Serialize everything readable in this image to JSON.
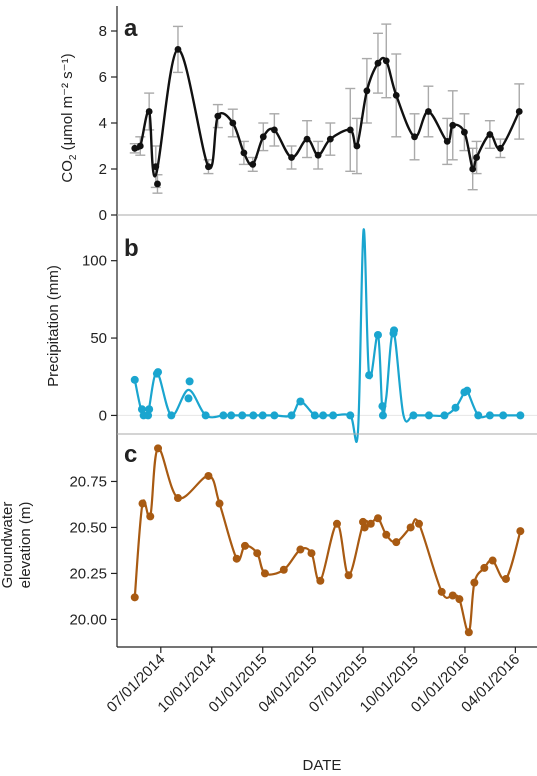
{
  "chart_data": [
    {
      "type": "scatter",
      "panel_label": "a",
      "ylabel_main": "CO",
      "ylabel_sub": "2",
      "ylabel_rest": " (μmol m⁻² s⁻¹)",
      "ylim": [
        0,
        9
      ],
      "yticks": [
        0,
        2,
        4,
        6,
        8
      ],
      "color": "#111111",
      "error_bar_color": "#aaaaaa",
      "points": [
        {
          "x": "2014-05-15",
          "y": 2.9,
          "err": 0.2
        },
        {
          "x": "2014-05-25",
          "y": 3.0,
          "err": 0.4
        },
        {
          "x": "2014-06-10",
          "y": 4.5,
          "err": 0.8
        },
        {
          "x": "2014-06-22",
          "y": 2.1,
          "err": 0.9
        },
        {
          "x": "2014-06-25",
          "y": 1.35,
          "err": 0.4
        },
        {
          "x": "2014-08-01",
          "y": 7.2,
          "err": 1.0
        },
        {
          "x": "2014-09-25",
          "y": 2.1,
          "err": 0.3
        },
        {
          "x": "2014-10-12",
          "y": 4.3,
          "err": 0.5
        },
        {
          "x": "2014-11-08",
          "y": 4.0,
          "err": 0.6
        },
        {
          "x": "2014-11-28",
          "y": 2.7,
          "err": 0.5
        },
        {
          "x": "2014-12-14",
          "y": 2.2,
          "err": 0.3
        },
        {
          "x": "2015-01-02",
          "y": 3.4,
          "err": 0.6
        },
        {
          "x": "2015-01-22",
          "y": 3.7,
          "err": 0.7
        },
        {
          "x": "2015-02-22",
          "y": 2.5,
          "err": 0.5
        },
        {
          "x": "2015-03-22",
          "y": 3.3,
          "err": 0.8
        },
        {
          "x": "2015-04-11",
          "y": 2.6,
          "err": 0.6
        },
        {
          "x": "2015-05-03",
          "y": 3.3,
          "err": 0.7
        },
        {
          "x": "2015-06-08",
          "y": 3.7,
          "err": 1.8
        },
        {
          "x": "2015-06-20",
          "y": 3.0,
          "err": 1.2
        },
        {
          "x": "2015-07-08",
          "y": 5.4,
          "err": 1.4
        },
        {
          "x": "2015-07-28",
          "y": 6.6,
          "err": 1.3
        },
        {
          "x": "2015-08-12",
          "y": 6.7,
          "err": 1.6
        },
        {
          "x": "2015-08-30",
          "y": 5.2,
          "err": 1.8
        },
        {
          "x": "2015-10-02",
          "y": 3.4,
          "err": 1.0
        },
        {
          "x": "2015-10-27",
          "y": 4.5,
          "err": 1.1
        },
        {
          "x": "2015-11-30",
          "y": 3.2,
          "err": 1.0
        },
        {
          "x": "2015-12-10",
          "y": 3.9,
          "err": 1.5
        },
        {
          "x": "2015-12-31",
          "y": 3.6,
          "err": 0.8
        },
        {
          "x": "2016-01-15",
          "y": 2.0,
          "err": 0.9
        },
        {
          "x": "2016-01-22",
          "y": 2.5,
          "err": 0.7
        },
        {
          "x": "2016-02-15",
          "y": 3.5,
          "err": 0.6
        },
        {
          "x": "2016-03-05",
          "y": 2.9,
          "err": 0.4
        },
        {
          "x": "2016-04-08",
          "y": 4.5,
          "err": 1.2
        }
      ]
    },
    {
      "type": "scatter",
      "panel_label": "b",
      "ylabel_main": "Precipitation (mm)",
      "ylim": [
        -12,
        125
      ],
      "yticks": [
        0,
        50,
        100
      ],
      "color": "#1aa5cf",
      "points": [
        {
          "x": "2014-05-15",
          "y": 23
        },
        {
          "x": "2014-05-28",
          "y": 4
        },
        {
          "x": "2014-05-31",
          "y": 0
        },
        {
          "x": "2014-06-08",
          "y": 0
        },
        {
          "x": "2014-06-10",
          "y": 4
        },
        {
          "x": "2014-06-24",
          "y": 27
        },
        {
          "x": "2014-06-26",
          "y": 28
        },
        {
          "x": "2014-07-20",
          "y": 0
        },
        {
          "x": "2014-08-20",
          "y": 11
        },
        {
          "x": "2014-08-22",
          "y": 22
        },
        {
          "x": "2014-09-20",
          "y": 0
        },
        {
          "x": "2014-10-22",
          "y": 0
        },
        {
          "x": "2014-11-05",
          "y": 0
        },
        {
          "x": "2014-11-25",
          "y": 0
        },
        {
          "x": "2014-12-15",
          "y": 0
        },
        {
          "x": "2015-01-01",
          "y": 0
        },
        {
          "x": "2015-01-22",
          "y": 0
        },
        {
          "x": "2015-02-22",
          "y": 0
        },
        {
          "x": "2015-03-10",
          "y": 9
        },
        {
          "x": "2015-04-05",
          "y": 0
        },
        {
          "x": "2015-04-20",
          "y": 0
        },
        {
          "x": "2015-05-08",
          "y": 0
        },
        {
          "x": "2015-06-08",
          "y": 0
        },
        {
          "x": "2015-07-12",
          "y": 26
        },
        {
          "x": "2015-07-28",
          "y": 52
        },
        {
          "x": "2015-08-05",
          "y": 6
        },
        {
          "x": "2015-08-06",
          "y": 0
        },
        {
          "x": "2015-08-25",
          "y": 53
        },
        {
          "x": "2015-08-26",
          "y": 55
        },
        {
          "x": "2015-09-30",
          "y": 0
        },
        {
          "x": "2015-10-28",
          "y": 0
        },
        {
          "x": "2015-11-25",
          "y": 0
        },
        {
          "x": "2015-12-15",
          "y": 5
        },
        {
          "x": "2015-12-31",
          "y": 15
        },
        {
          "x": "2016-01-05",
          "y": 16
        },
        {
          "x": "2016-01-25",
          "y": 0
        },
        {
          "x": "2016-02-15",
          "y": 0
        },
        {
          "x": "2016-03-10",
          "y": 0
        },
        {
          "x": "2016-04-10",
          "y": 0
        }
      ],
      "curve_only": [
        {
          "x": "2015-06-22",
          "y": -10
        },
        {
          "x": "2015-07-02",
          "y": 120
        },
        {
          "x": "2015-08-12",
          "y": 12
        },
        {
          "x": "2015-09-12",
          "y": 0
        }
      ]
    },
    {
      "type": "scatter",
      "panel_label": "c",
      "ylabel_line1": "Groundwater",
      "ylabel_line2": "elevation (m)",
      "ylim": [
        19.85,
        20.97
      ],
      "yticks": [
        20.0,
        20.25,
        20.5,
        20.75
      ],
      "ytick_labels": [
        "20.00",
        "20.25",
        "20.50",
        "20.75"
      ],
      "color": "#a85a12",
      "points": [
        {
          "x": "2014-05-15",
          "y": 20.12
        },
        {
          "x": "2014-05-29",
          "y": 20.63
        },
        {
          "x": "2014-06-12",
          "y": 20.56
        },
        {
          "x": "2014-06-26",
          "y": 20.93
        },
        {
          "x": "2014-08-01",
          "y": 20.66
        },
        {
          "x": "2014-09-25",
          "y": 20.78
        },
        {
          "x": "2014-10-15",
          "y": 20.63
        },
        {
          "x": "2014-11-15",
          "y": 20.33
        },
        {
          "x": "2014-11-30",
          "y": 20.4
        },
        {
          "x": "2014-12-22",
          "y": 20.36
        },
        {
          "x": "2015-01-05",
          "y": 20.25
        },
        {
          "x": "2015-02-08",
          "y": 20.27
        },
        {
          "x": "2015-03-10",
          "y": 20.38
        },
        {
          "x": "2015-03-30",
          "y": 20.36
        },
        {
          "x": "2015-04-15",
          "y": 20.21
        },
        {
          "x": "2015-05-15",
          "y": 20.52
        },
        {
          "x": "2015-06-05",
          "y": 20.24
        },
        {
          "x": "2015-07-01",
          "y": 20.53
        },
        {
          "x": "2015-07-04",
          "y": 20.5
        },
        {
          "x": "2015-07-15",
          "y": 20.52
        },
        {
          "x": "2015-07-28",
          "y": 20.55
        },
        {
          "x": "2015-08-12",
          "y": 20.46
        },
        {
          "x": "2015-08-30",
          "y": 20.42
        },
        {
          "x": "2015-09-25",
          "y": 20.5
        },
        {
          "x": "2015-10-10",
          "y": 20.52
        },
        {
          "x": "2015-11-20",
          "y": 20.15
        },
        {
          "x": "2015-12-10",
          "y": 20.13
        },
        {
          "x": "2015-12-22",
          "y": 20.11
        },
        {
          "x": "2016-01-08",
          "y": 19.93
        },
        {
          "x": "2016-01-18",
          "y": 20.2
        },
        {
          "x": "2016-02-05",
          "y": 20.28
        },
        {
          "x": "2016-02-20",
          "y": 20.32
        },
        {
          "x": "2016-03-15",
          "y": 20.22
        },
        {
          "x": "2016-04-10",
          "y": 20.48
        }
      ]
    }
  ],
  "x_axis": {
    "label": "DATE",
    "range": [
      "2014-05-01",
      "2016-04-22"
    ],
    "ticks": [
      {
        "date": "2014-07-01",
        "label": "07/01/2014"
      },
      {
        "date": "2014-10-01",
        "label": "10/01/2014"
      },
      {
        "date": "2015-01-01",
        "label": "01/01/2015"
      },
      {
        "date": "2015-04-01",
        "label": "04/01/2015"
      },
      {
        "date": "2015-07-01",
        "label": "07/01/2015"
      },
      {
        "date": "2015-10-01",
        "label": "10/01/2015"
      },
      {
        "date": "2016-01-01",
        "label": "01/01/2016"
      },
      {
        "date": "2016-04-01",
        "label": "04/01/2016"
      }
    ]
  }
}
